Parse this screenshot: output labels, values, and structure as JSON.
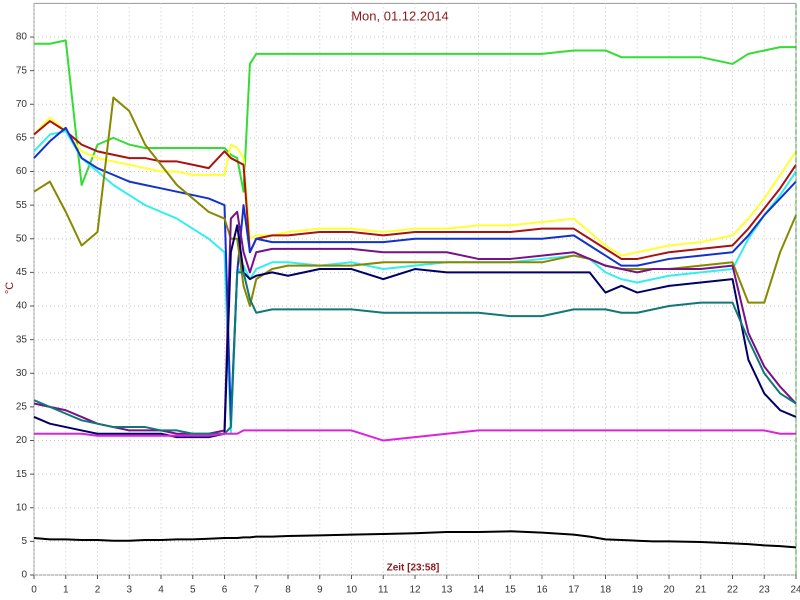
{
  "chart_data": {
    "type": "line",
    "title": "Mon, 01.12.2014",
    "xlabel": "Zeit [23:58]",
    "ylabel": "°C",
    "x": [
      0,
      0.5,
      1,
      1.5,
      2,
      2.5,
      3,
      3.5,
      4,
      4.5,
      5,
      5.5,
      6,
      6.2,
      6.4,
      6.6,
      6.8,
      7,
      7.5,
      8,
      9,
      10,
      11,
      12,
      13,
      14,
      15,
      16,
      17,
      17.5,
      18,
      18.5,
      19,
      19.5,
      20,
      21,
      22,
      22.5,
      23,
      23.5,
      24
    ],
    "xlim": [
      0,
      24
    ],
    "xticks": [
      0,
      1,
      2,
      3,
      4,
      5,
      6,
      7,
      8,
      9,
      10,
      11,
      12,
      13,
      14,
      15,
      16,
      17,
      18,
      19,
      20,
      21,
      22,
      23,
      24
    ],
    "ylim": [
      0,
      85
    ],
    "yticks": [
      0,
      5,
      10,
      15,
      20,
      25,
      30,
      35,
      40,
      45,
      50,
      55,
      60,
      65,
      70,
      75,
      80
    ],
    "grid": true,
    "series": [
      {
        "color": "#33dd33",
        "values": [
          79,
          79,
          79.5,
          58,
          64,
          65,
          64,
          63.5,
          63.5,
          63.5,
          63.5,
          63.5,
          63.5,
          62.5,
          62,
          57,
          76,
          77.5,
          77.5,
          77.5,
          77.5,
          77.5,
          77.5,
          77.5,
          77.5,
          77.5,
          77.5,
          77.5,
          78,
          78,
          78,
          77,
          77,
          77,
          77,
          77,
          76,
          77.5,
          78,
          78.5,
          78.5
        ]
      },
      {
        "color": "#ffff33",
        "values": [
          65.5,
          68,
          66,
          63,
          62,
          61.5,
          61,
          60.5,
          60,
          60,
          59.5,
          59.5,
          59.5,
          64,
          63.5,
          62,
          50,
          50.5,
          50.5,
          51,
          51.5,
          51.5,
          51,
          51.5,
          51.5,
          52,
          52,
          52.5,
          53,
          51,
          49,
          47.5,
          48,
          48.5,
          49,
          49.5,
          50.5,
          53,
          56,
          59.5,
          63
        ]
      },
      {
        "color": "#aa1111",
        "values": [
          65.5,
          67.5,
          66,
          64,
          63,
          62.5,
          62,
          62,
          61.5,
          61.5,
          61,
          60.5,
          63,
          62,
          61.5,
          61,
          48,
          50,
          50.5,
          50.5,
          51,
          51,
          50.5,
          51,
          51,
          51,
          51,
          51.5,
          51.5,
          50,
          48.5,
          47,
          47,
          47.5,
          48,
          48.5,
          49,
          51.5,
          54.5,
          57.5,
          61
        ]
      },
      {
        "color": "#33eeee",
        "values": [
          63,
          65.5,
          66,
          62,
          60,
          58,
          56.5,
          55,
          54,
          53,
          51.5,
          50,
          48,
          21,
          45,
          46,
          44,
          45.5,
          46.5,
          46.5,
          46,
          46.5,
          45.5,
          46,
          46.5,
          46.5,
          46.5,
          47,
          47.5,
          47,
          45,
          44,
          43.5,
          44,
          44.5,
          45,
          45.5,
          50,
          53.5,
          56.5,
          60
        ]
      },
      {
        "color": "#1133cc",
        "values": [
          62,
          64.5,
          66.5,
          62,
          60.5,
          59.5,
          58.5,
          58,
          57.5,
          57,
          56.5,
          56,
          55,
          23,
          45,
          55,
          48,
          50,
          49.5,
          49.5,
          49.5,
          49.5,
          49.5,
          50,
          50,
          50,
          50,
          50,
          50.5,
          49,
          47.5,
          46,
          46,
          46.5,
          47,
          47.5,
          48,
          50.5,
          53.5,
          56,
          58.5
        ]
      },
      {
        "color": "#888800",
        "values": [
          57,
          58.5,
          54,
          49,
          51,
          71,
          69,
          64,
          61,
          58,
          56,
          54,
          53,
          50,
          50,
          43,
          40,
          44,
          45.5,
          46,
          46,
          46,
          46.5,
          46.5,
          46.5,
          46.5,
          46.5,
          46.5,
          47.5,
          47,
          46,
          45.5,
          45.5,
          45.5,
          45.5,
          46,
          46.5,
          40.5,
          40.5,
          48,
          53.5
        ]
      },
      {
        "color": "#771188",
        "values": [
          25.5,
          25,
          24.5,
          23.5,
          22.5,
          22,
          21.5,
          21.5,
          21.5,
          21,
          21,
          21,
          21.5,
          53,
          54,
          48,
          45,
          48,
          48.5,
          48.5,
          48.5,
          48.5,
          48,
          48,
          48,
          47,
          47,
          47.5,
          48,
          47,
          46,
          45.5,
          45,
          45.5,
          45.5,
          45.5,
          46,
          36,
          31,
          28,
          25.5
        ]
      },
      {
        "color": "#000066",
        "values": [
          23.5,
          22.5,
          22,
          21.5,
          21,
          21,
          21,
          21,
          21,
          20.5,
          20.5,
          20.5,
          21,
          48,
          52,
          45,
          44,
          44.5,
          45,
          44.5,
          45.5,
          45.5,
          44,
          45.5,
          45,
          45,
          45,
          45,
          45,
          45,
          42,
          43,
          42,
          42.5,
          43,
          43.5,
          44,
          32,
          27,
          24.5,
          23.5
        ]
      },
      {
        "color": "#117777",
        "values": [
          26,
          25,
          24,
          23,
          22.5,
          22,
          22,
          22,
          21.5,
          21.5,
          21,
          21,
          21,
          22,
          45,
          45,
          41,
          39,
          39.5,
          39.5,
          39.5,
          39.5,
          39,
          39,
          39,
          39,
          38.5,
          38.5,
          39.5,
          39.5,
          39.5,
          39,
          39,
          39.5,
          40,
          40.5,
          40.5,
          35,
          30,
          27,
          25.5
        ]
      },
      {
        "color": "#dd22dd",
        "values": [
          21,
          21,
          21,
          21,
          20.7,
          20.7,
          20.7,
          20.7,
          20.7,
          20.7,
          20.7,
          20.7,
          21,
          21,
          21,
          21.5,
          21.5,
          21.5,
          21.5,
          21.5,
          21.5,
          21.5,
          20,
          20.5,
          21,
          21.5,
          21.5,
          21.5,
          21.5,
          21.5,
          21.5,
          21.5,
          21.5,
          21.5,
          21.5,
          21.5,
          21.5,
          21.5,
          21.5,
          21,
          21
        ]
      },
      {
        "color": "#000000",
        "values": [
          5.5,
          5.3,
          5.3,
          5.2,
          5.2,
          5.1,
          5.1,
          5.2,
          5.2,
          5.3,
          5.3,
          5.4,
          5.5,
          5.5,
          5.5,
          5.6,
          5.6,
          5.7,
          5.7,
          5.8,
          5.9,
          6,
          6.1,
          6.2,
          6.4,
          6.4,
          6.5,
          6.3,
          6,
          5.7,
          5.3,
          5.2,
          5.1,
          5,
          5,
          4.9,
          4.7,
          4.6,
          4.4,
          4.3,
          4.1
        ]
      }
    ]
  }
}
